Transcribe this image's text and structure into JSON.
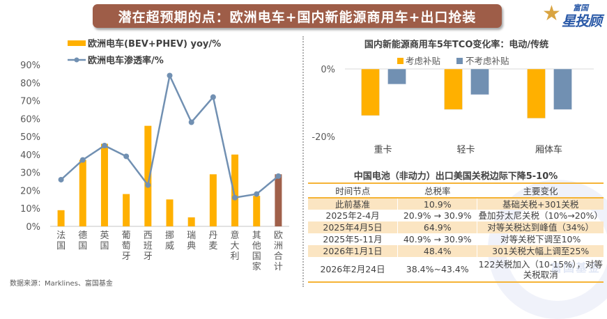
{
  "banner": {
    "title": "潜在超预期的点：欧洲电车+国内新能源商用车+出口抢装"
  },
  "logo": {
    "top": "富国",
    "main": "星投顾",
    "star": "★"
  },
  "source": "数据来源：Marklines、富国基金",
  "colors": {
    "orange": "#ffb000",
    "blue": "#7190b2",
    "brown": "#a0604a",
    "banner": "#9e5d48",
    "table_border": "#f5b335",
    "table_shade": "#fbe5c2"
  },
  "chart_data": [
    {
      "id": "europe-ev",
      "type": "bar",
      "title": "",
      "categories": [
        "法国",
        "德国",
        "英国",
        "葡萄牙",
        "西班牙",
        "挪威",
        "瑞典",
        "丹麦",
        "意大利",
        "其他国家",
        "欧洲合计"
      ],
      "series": [
        {
          "name": "欧洲电车(BEV+PHEV) yoy/%",
          "kind": "bar",
          "values": [
            9,
            37,
            46,
            18,
            56,
            15,
            5,
            29,
            40,
            17,
            29
          ],
          "highlight_last": true
        },
        {
          "name": "欧洲电车渗透率/%",
          "kind": "line",
          "values": [
            26,
            37,
            45,
            39,
            23,
            84,
            58,
            72,
            16,
            18,
            28
          ]
        }
      ],
      "yticks": [
        "0%",
        "10%",
        "20%",
        "30%",
        "40%",
        "50%",
        "60%",
        "70%",
        "80%",
        "90%"
      ],
      "ylim": [
        0,
        90
      ],
      "xlabel": "",
      "ylabel": "",
      "legend": "top",
      "grid": false
    },
    {
      "id": "tco",
      "type": "bar",
      "title": "国内新能源商用车5年TCO变化率：电动/传统",
      "categories": [
        "重卡",
        "轻卡",
        "厢体车"
      ],
      "series": [
        {
          "name": "考虑补贴",
          "values": [
            -13.8,
            -12.0,
            -14.6
          ]
        },
        {
          "name": "不考虑补贴",
          "values": [
            -4.5,
            -7.6,
            -12.0
          ]
        }
      ],
      "yticks": [
        "0%",
        "-20%"
      ],
      "ylim": [
        -20,
        0
      ],
      "xlabel": "",
      "ylabel": "",
      "legend": "top",
      "grid": false
    },
    {
      "id": "tariff-table",
      "type": "table",
      "title": "中国电池（非动力）出口美国关税边际下降5-10%",
      "columns": [
        "时间节点",
        "总税率",
        "主要变化"
      ],
      "rows": [
        [
          "此前基准",
          "10.9%",
          "基础关税+301关税"
        ],
        [
          "2025年2-4月",
          "20.9% → 30.9%",
          "叠加芬太尼关税（10%→20%）"
        ],
        [
          "2025年4月5日",
          "64.9%",
          "对等关税达到峰值（34%）"
        ],
        [
          "2025年5-11月",
          "40.9% → 30.9%",
          "对等关税下调至10%"
        ],
        [
          "2026年1月1日",
          "48.4%",
          "301关税大幅上调至25%"
        ],
        [
          "2026年2月24日",
          "38.4%~43.4%",
          "122关税加入（10-15%），对等关税取消"
        ]
      ]
    }
  ],
  "watermark": "富国基金"
}
